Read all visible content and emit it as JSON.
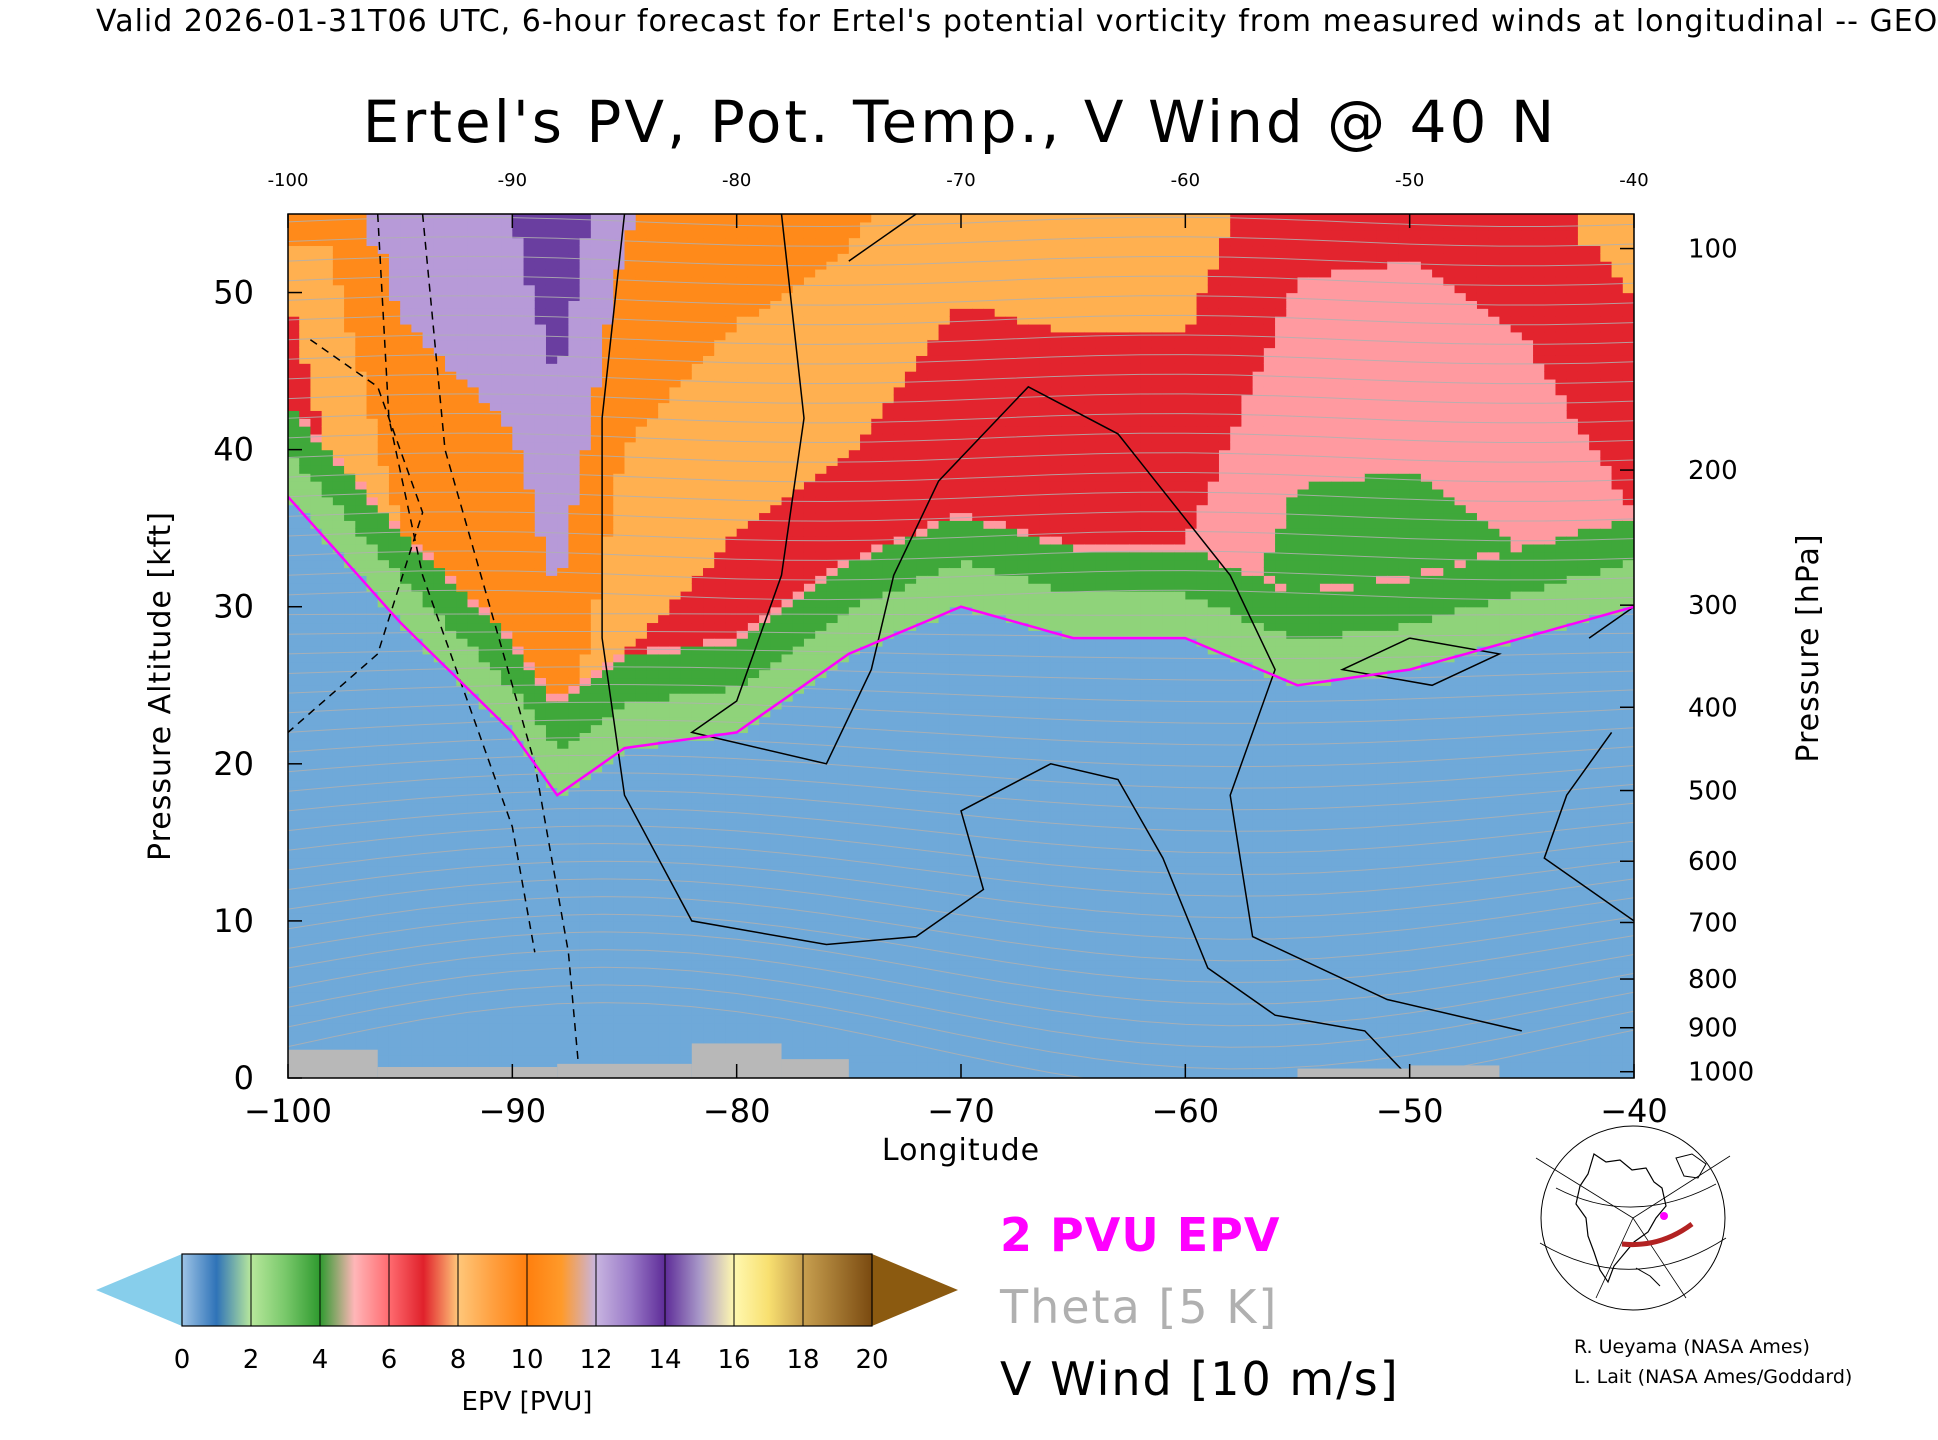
{
  "header": "Valid 2026-01-31T06 UTC, 6-hour forecast for Ertel's potential vorticity from measured winds at longitudinal -- GEO",
  "chart_data": {
    "type": "heatmap",
    "title": "Ertel's PV, Pot. Temp., V Wind @ 40 N",
    "xlabel": "Longitude",
    "ylabel": "Pressure Altitude [kft]",
    "y2label": "Pressure [hPa]",
    "xlim": [
      -100,
      -40
    ],
    "ylim": [
      0,
      55
    ],
    "x_ticks": [
      -100,
      -90,
      -80,
      -70,
      -60,
      -50,
      -40
    ],
    "x_tick_labels": [
      "−100",
      "−90",
      "−80",
      "−70",
      "−60",
      "−50",
      "−40"
    ],
    "x_top_tick_labels": [
      "-100",
      "-90",
      "-80",
      "-70",
      "-60",
      "-50",
      "-40"
    ],
    "y_ticks": [
      0,
      10,
      20,
      30,
      40,
      50
    ],
    "y_tick_labels": [
      "0",
      "10",
      "20",
      "30",
      "40",
      "50"
    ],
    "pressure_ticks": [
      {
        "label": "100",
        "kft": 52.8
      },
      {
        "label": "200",
        "kft": 38.7
      },
      {
        "label": "300",
        "kft": 30.1
      },
      {
        "label": "400",
        "kft": 23.6
      },
      {
        "label": "500",
        "kft": 18.3
      },
      {
        "label": "600",
        "kft": 13.8
      },
      {
        "label": "700",
        "kft": 9.9
      },
      {
        "label": "800",
        "kft": 6.3
      },
      {
        "label": "900",
        "kft": 3.2
      },
      {
        "label": "1000",
        "kft": 0.4
      }
    ],
    "colorbar": {
      "label": "EPV [PVU]",
      "ticks": [
        "0",
        "2",
        "4",
        "6",
        "8",
        "10",
        "12",
        "14",
        "16",
        "18",
        "20"
      ],
      "colors": [
        "#6fa9d9",
        "#8fd37a",
        "#3fa83a",
        "#ff9aa0",
        "#e3242e",
        "#ffb050",
        "#ff8a1a",
        "#b79ad8",
        "#6a3ea0",
        "#fff08a"
      ],
      "under_color": "#87ceeb",
      "over_color": "#8b5a10"
    },
    "epv_field": {
      "longitudes": [
        -100,
        -95,
        -90,
        -88,
        -85,
        -80,
        -75,
        -70,
        -65,
        -60,
        -55,
        -50,
        -45,
        -40
      ],
      "tropopause_kft": [
        37,
        29,
        22,
        18,
        21,
        22,
        27,
        30,
        28,
        28,
        25,
        26,
        28,
        30
      ],
      "upper_level_pvu": [
        9,
        12,
        12,
        13,
        10,
        9,
        9,
        8,
        8,
        8,
        5,
        5,
        6,
        8
      ]
    }
  },
  "legend": {
    "pv": "2 PVU EPV",
    "theta": "Theta [5 K]",
    "wind": "V Wind [10 m/s]"
  },
  "credits": {
    "line1": "R. Ueyama (NASA Ames)",
    "line2": "L. Lait (NASA Ames/Goddard)"
  },
  "colors": {
    "pv_contour": "#ff00ff",
    "theta_contour": "#b0b0b0",
    "wind_contour": "#000000",
    "terrain": "#b8b8b8"
  }
}
